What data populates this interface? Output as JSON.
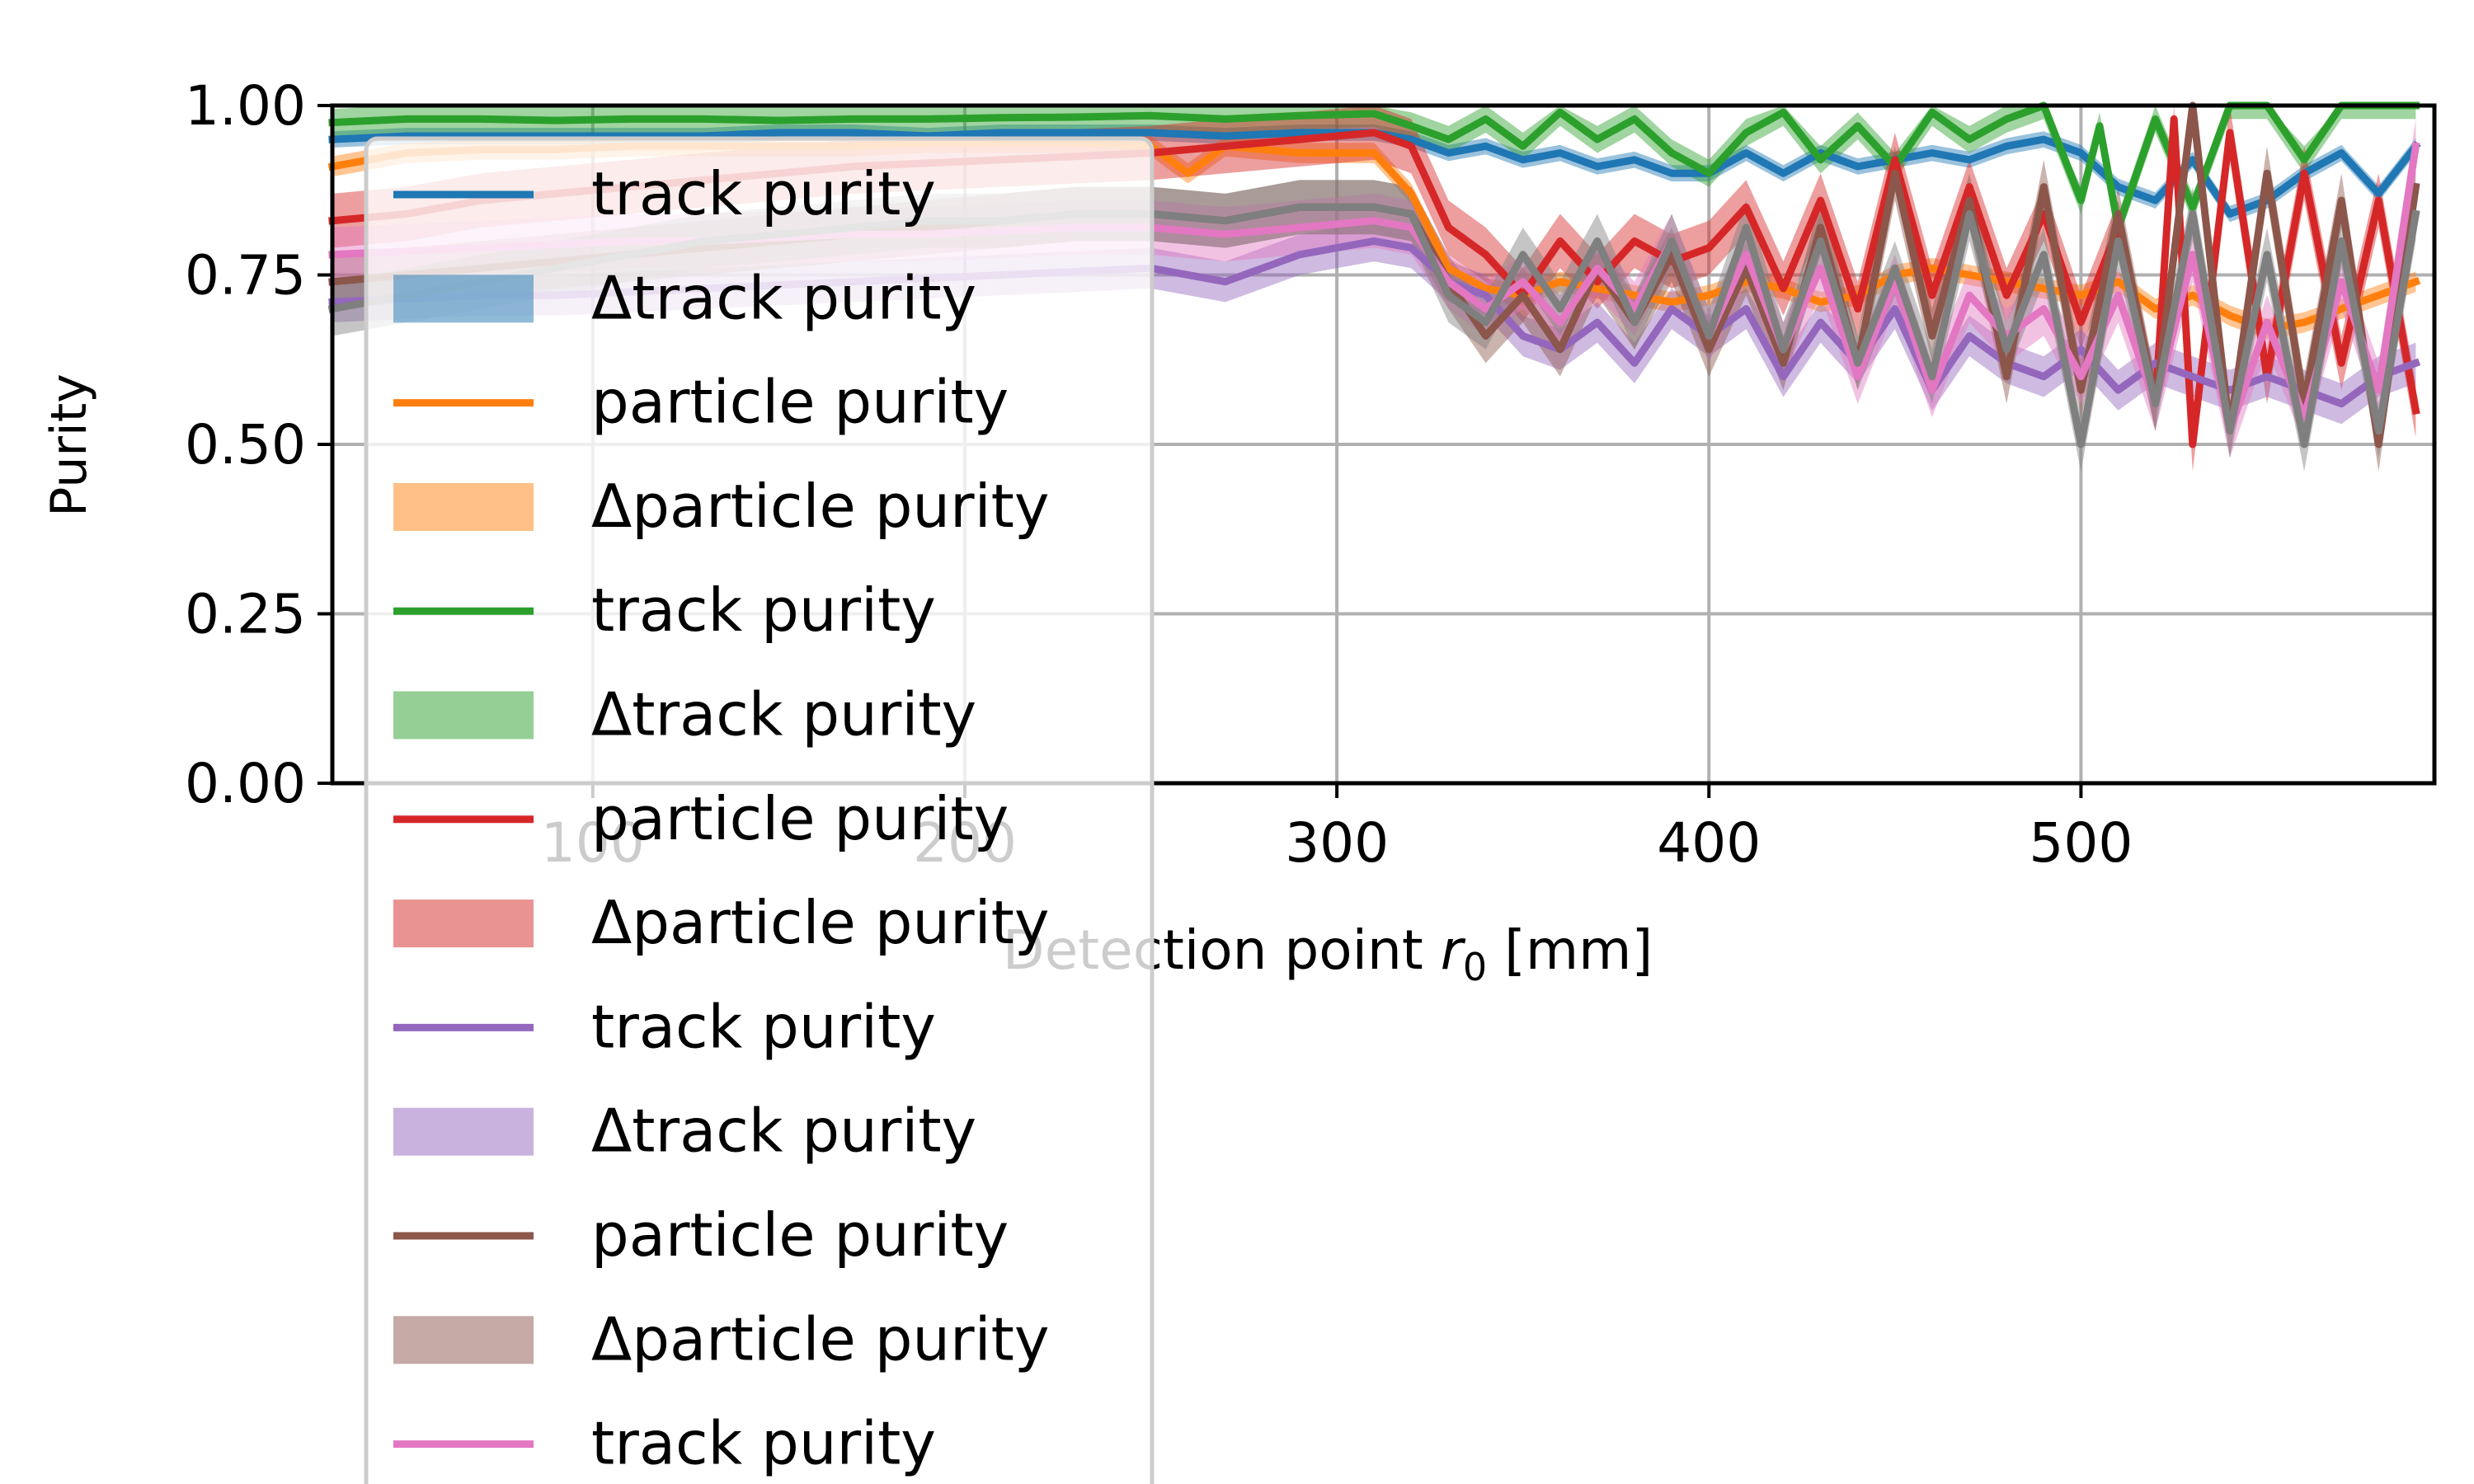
{
  "chart_data": {
    "type": "line",
    "xlabel": "Detection point r₀ [mm]",
    "ylabel": "Purity",
    "xlim": [
      30,
      595
    ],
    "ylim": [
      0,
      1
    ],
    "x_ticks": [
      100,
      200,
      300,
      400,
      500
    ],
    "x_tick_labels": [
      "100",
      "200",
      "300",
      "400",
      "500"
    ],
    "y_ticks": [
      0,
      0.25,
      0.5,
      0.75,
      1.0
    ],
    "y_tick_labels": [
      "0.00",
      "0.25",
      "0.50",
      "0.75",
      "1.00"
    ],
    "grid": true,
    "legend_placement": "upper-left, extending below axes",
    "legend": [
      {
        "label": "track purity",
        "kind": "line",
        "color": "#1f77b4"
      },
      {
        "label": "Δtrack purity",
        "kind": "patch",
        "color": "#1f77b4"
      },
      {
        "label": "particle purity",
        "kind": "line",
        "color": "#ff7f0e"
      },
      {
        "label": "Δparticle purity",
        "kind": "patch",
        "color": "#ff7f0e"
      },
      {
        "label": "track purity",
        "kind": "line",
        "color": "#2ca02c"
      },
      {
        "label": "Δtrack purity",
        "kind": "patch",
        "color": "#2ca02c"
      },
      {
        "label": "particle purity",
        "kind": "line",
        "color": "#d62728"
      },
      {
        "label": "Δparticle purity",
        "kind": "patch",
        "color": "#d62728"
      },
      {
        "label": "track purity",
        "kind": "line",
        "color": "#9467bd"
      },
      {
        "label": "Δtrack purity",
        "kind": "patch",
        "color": "#9467bd"
      },
      {
        "label": "particle purity",
        "kind": "line",
        "color": "#8c564b"
      },
      {
        "label": "Δparticle purity",
        "kind": "patch",
        "color": "#8c564b"
      },
      {
        "label": "track purity",
        "kind": "line",
        "color": "#e377c2"
      }
    ],
    "series": [
      {
        "name": "track purity",
        "color": "#1f77b4",
        "band": 0.012,
        "x": [
          30,
          50,
          70,
          90,
          110,
          130,
          150,
          170,
          190,
          210,
          230,
          250,
          270,
          290,
          310,
          320,
          330,
          340,
          350,
          360,
          370,
          380,
          390,
          400,
          410,
          420,
          430,
          440,
          450,
          460,
          470,
          480,
          490,
          500,
          510,
          520,
          530,
          540,
          550,
          560,
          570,
          580,
          590
        ],
        "y": [
          0.95,
          0.955,
          0.955,
          0.955,
          0.955,
          0.955,
          0.96,
          0.96,
          0.955,
          0.96,
          0.96,
          0.96,
          0.955,
          0.96,
          0.96,
          0.95,
          0.93,
          0.94,
          0.92,
          0.93,
          0.91,
          0.92,
          0.9,
          0.9,
          0.93,
          0.9,
          0.93,
          0.91,
          0.92,
          0.93,
          0.92,
          0.94,
          0.95,
          0.93,
          0.88,
          0.86,
          0.92,
          0.84,
          0.86,
          0.9,
          0.93,
          0.87,
          0.94
        ]
      },
      {
        "name": "particle purity",
        "color": "#ff7f0e",
        "band": 0.015,
        "x": [
          30,
          50,
          70,
          90,
          110,
          130,
          150,
          170,
          190,
          210,
          230,
          250,
          260,
          270,
          290,
          310,
          320,
          330,
          340,
          350,
          360,
          370,
          380,
          390,
          400,
          410,
          420,
          430,
          440,
          450,
          460,
          470,
          480,
          490,
          500,
          510,
          520,
          530,
          540,
          550,
          560,
          570,
          580,
          590
        ],
        "y": [
          0.91,
          0.93,
          0.935,
          0.935,
          0.94,
          0.94,
          0.94,
          0.94,
          0.945,
          0.945,
          0.945,
          0.94,
          0.9,
          0.94,
          0.93,
          0.93,
          0.87,
          0.76,
          0.73,
          0.72,
          0.74,
          0.73,
          0.72,
          0.71,
          0.72,
          0.74,
          0.73,
          0.71,
          0.72,
          0.75,
          0.76,
          0.75,
          0.74,
          0.73,
          0.72,
          0.74,
          0.7,
          0.72,
          0.69,
          0.67,
          0.68,
          0.7,
          0.72,
          0.74
        ]
      },
      {
        "name": "track purity",
        "color": "#2ca02c",
        "band": 0.02,
        "x": [
          30,
          50,
          70,
          90,
          110,
          130,
          150,
          170,
          190,
          210,
          230,
          250,
          270,
          290,
          310,
          320,
          330,
          340,
          350,
          360,
          370,
          380,
          390,
          400,
          410,
          420,
          430,
          440,
          450,
          460,
          470,
          480,
          490,
          500,
          505,
          510,
          520,
          530,
          540,
          550,
          560,
          570,
          580,
          590
        ],
        "y": [
          0.975,
          0.98,
          0.98,
          0.978,
          0.98,
          0.98,
          0.978,
          0.98,
          0.98,
          0.982,
          0.983,
          0.985,
          0.98,
          0.985,
          0.988,
          0.97,
          0.95,
          0.98,
          0.94,
          0.99,
          0.95,
          0.98,
          0.93,
          0.9,
          0.96,
          0.99,
          0.92,
          0.97,
          0.91,
          0.99,
          0.95,
          0.98,
          1.0,
          0.86,
          0.97,
          0.82,
          0.98,
          0.85,
          1.0,
          1.0,
          0.92,
          1.0,
          1.0,
          1.0
        ]
      },
      {
        "name": "particle purity",
        "color": "#d62728",
        "band": 0.04,
        "x": [
          30,
          50,
          70,
          90,
          110,
          130,
          150,
          170,
          190,
          210,
          230,
          250,
          270,
          290,
          310,
          320,
          330,
          340,
          350,
          360,
          370,
          380,
          390,
          400,
          410,
          420,
          430,
          440,
          450,
          460,
          470,
          480,
          490,
          500,
          510,
          520,
          525,
          530,
          540,
          550,
          560,
          570,
          580,
          590
        ],
        "y": [
          0.83,
          0.84,
          0.86,
          0.87,
          0.88,
          0.89,
          0.9,
          0.91,
          0.915,
          0.92,
          0.925,
          0.93,
          0.94,
          0.95,
          0.96,
          0.94,
          0.82,
          0.78,
          0.72,
          0.8,
          0.74,
          0.8,
          0.77,
          0.79,
          0.85,
          0.73,
          0.86,
          0.7,
          0.92,
          0.72,
          0.88,
          0.72,
          0.84,
          0.68,
          0.82,
          0.56,
          0.98,
          0.5,
          0.96,
          0.6,
          0.9,
          0.62,
          0.86,
          0.55
        ]
      },
      {
        "name": "track purity",
        "color": "#9467bd",
        "band": 0.03,
        "x": [
          30,
          50,
          70,
          90,
          110,
          130,
          150,
          170,
          190,
          210,
          230,
          250,
          270,
          290,
          310,
          320,
          330,
          340,
          350,
          360,
          370,
          380,
          390,
          400,
          410,
          420,
          430,
          440,
          450,
          460,
          470,
          480,
          490,
          500,
          510,
          520,
          530,
          540,
          550,
          560,
          570,
          580,
          590
        ],
        "y": [
          0.71,
          0.715,
          0.72,
          0.72,
          0.725,
          0.73,
          0.735,
          0.74,
          0.745,
          0.75,
          0.755,
          0.76,
          0.74,
          0.78,
          0.8,
          0.79,
          0.74,
          0.72,
          0.66,
          0.64,
          0.68,
          0.62,
          0.7,
          0.66,
          0.7,
          0.6,
          0.68,
          0.62,
          0.7,
          0.58,
          0.66,
          0.62,
          0.6,
          0.64,
          0.58,
          0.62,
          0.6,
          0.58,
          0.6,
          0.58,
          0.56,
          0.6,
          0.62
        ]
      },
      {
        "name": "particle purity",
        "color": "#8c564b",
        "band": 0.04,
        "x": [
          30,
          50,
          70,
          90,
          110,
          130,
          150,
          170,
          190,
          210,
          230,
          250,
          270,
          290,
          310,
          320,
          330,
          340,
          350,
          360,
          370,
          380,
          390,
          400,
          410,
          420,
          430,
          440,
          450,
          460,
          470,
          480,
          490,
          500,
          510,
          520,
          530,
          540,
          550,
          560,
          570,
          580,
          590
        ],
        "y": [
          0.74,
          0.75,
          0.76,
          0.77,
          0.78,
          0.79,
          0.8,
          0.81,
          0.82,
          0.83,
          0.84,
          0.84,
          0.83,
          0.85,
          0.85,
          0.84,
          0.74,
          0.66,
          0.72,
          0.64,
          0.76,
          0.68,
          0.78,
          0.64,
          0.76,
          0.62,
          0.82,
          0.62,
          0.9,
          0.66,
          0.86,
          0.6,
          0.88,
          0.58,
          0.84,
          0.56,
          1.0,
          0.52,
          0.9,
          0.56,
          0.86,
          0.5,
          0.88
        ]
      },
      {
        "name": "track purity",
        "color": "#e377c2",
        "band": 0.04,
        "x": [
          30,
          50,
          70,
          90,
          110,
          130,
          150,
          170,
          190,
          210,
          230,
          250,
          270,
          290,
          310,
          320,
          330,
          340,
          350,
          360,
          370,
          380,
          390,
          400,
          410,
          420,
          430,
          440,
          450,
          460,
          470,
          480,
          490,
          500,
          510,
          520,
          530,
          540,
          550,
          560,
          570,
          580,
          590
        ],
        "y": [
          0.78,
          0.785,
          0.79,
          0.795,
          0.8,
          0.8,
          0.805,
          0.81,
          0.81,
          0.815,
          0.82,
          0.82,
          0.81,
          0.82,
          0.83,
          0.82,
          0.74,
          0.7,
          0.74,
          0.68,
          0.76,
          0.7,
          0.8,
          0.66,
          0.78,
          0.64,
          0.76,
          0.6,
          0.74,
          0.58,
          0.72,
          0.66,
          0.7,
          0.6,
          0.72,
          0.56,
          0.78,
          0.52,
          0.68,
          0.54,
          0.74,
          0.58,
          0.94
        ]
      },
      {
        "name": "particle purity",
        "color": "#7f7f7f",
        "band": 0.04,
        "x": [
          30,
          50,
          70,
          90,
          110,
          130,
          150,
          170,
          190,
          210,
          230,
          250,
          270,
          290,
          310,
          320,
          330,
          340,
          350,
          360,
          370,
          380,
          390,
          400,
          410,
          420,
          430,
          440,
          450,
          460,
          470,
          480,
          490,
          500,
          510,
          520,
          530,
          540,
          550,
          560,
          570,
          580,
          590
        ],
        "y": [
          0.7,
          0.72,
          0.74,
          0.76,
          0.78,
          0.8,
          0.81,
          0.82,
          0.83,
          0.83,
          0.84,
          0.84,
          0.83,
          0.85,
          0.85,
          0.84,
          0.72,
          0.68,
          0.78,
          0.7,
          0.8,
          0.68,
          0.8,
          0.66,
          0.82,
          0.64,
          0.8,
          0.62,
          0.76,
          0.6,
          0.84,
          0.64,
          0.78,
          0.5,
          0.8,
          0.56,
          0.84,
          0.52,
          0.78,
          0.5,
          0.8,
          0.52,
          0.84
        ]
      }
    ]
  }
}
